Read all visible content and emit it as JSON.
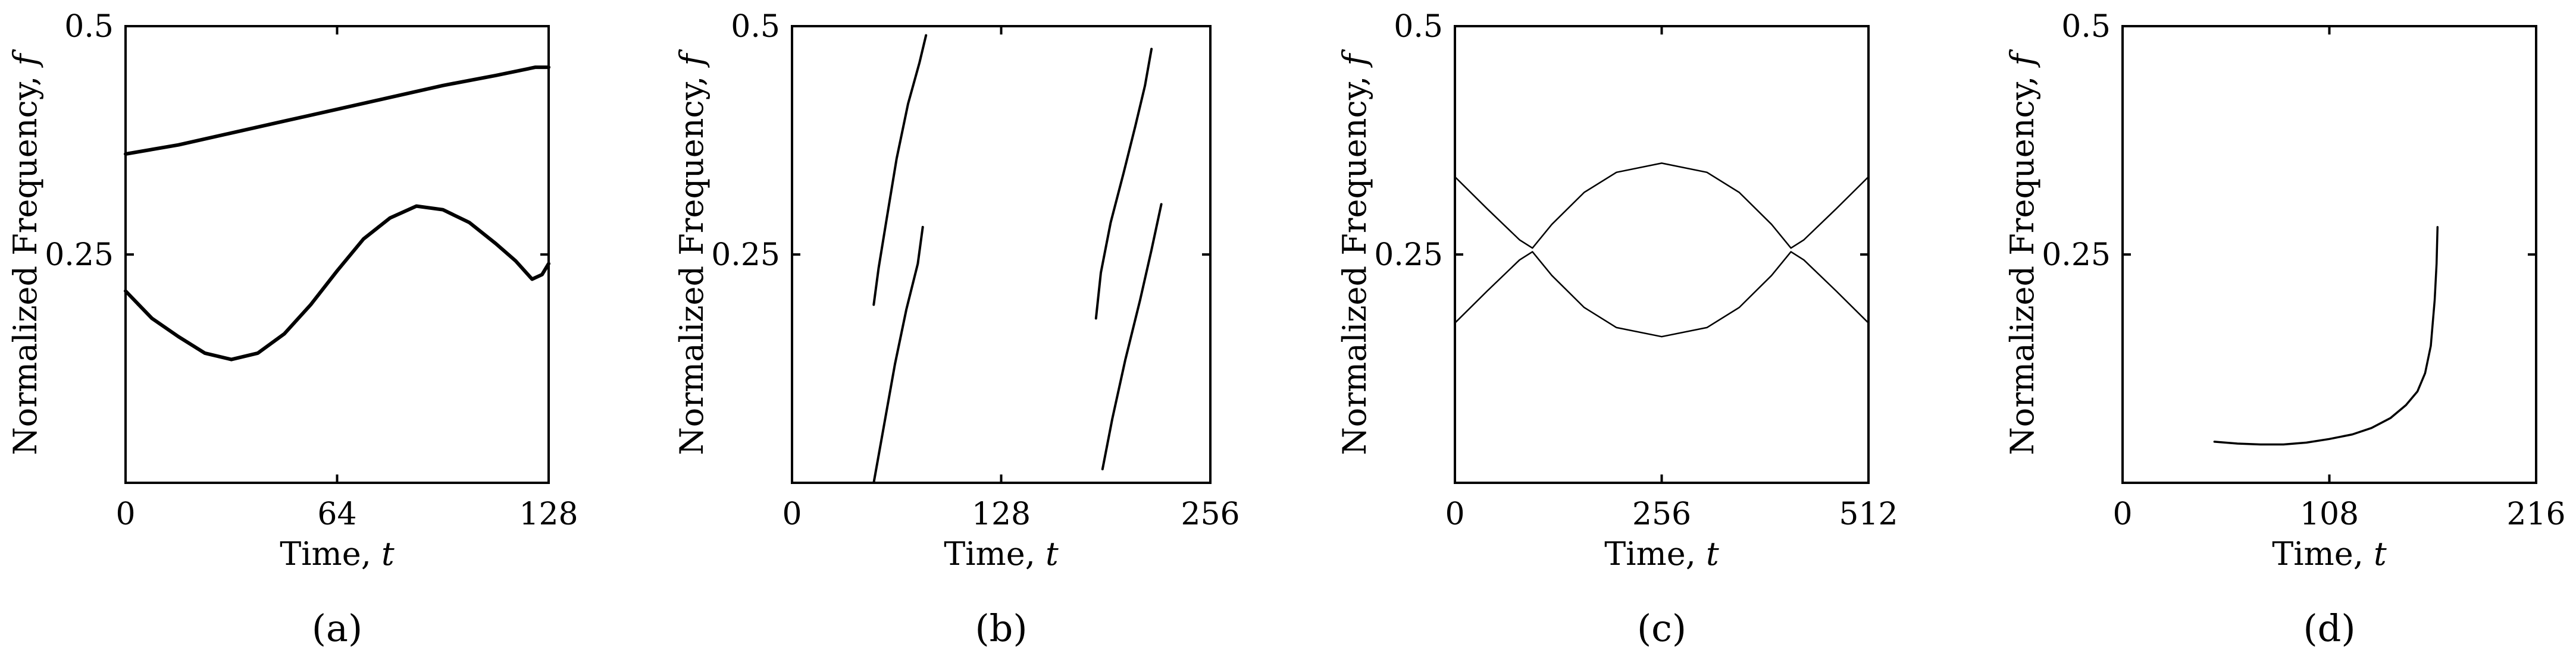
{
  "chart_data": [
    {
      "type": "line",
      "panel_label": "(a)",
      "xlabel": "Time, t",
      "ylabel": "Normalized Frequency, f",
      "xlim": [
        0,
        128
      ],
      "ylim": [
        0,
        0.5
      ],
      "x_ticks": [
        "0",
        "64",
        "128"
      ],
      "y_ticks": [
        "0.25",
        "0.5"
      ],
      "series": [
        {
          "points": [
            [
              0,
              0.36
            ],
            [
              16,
              0.37
            ],
            [
              32,
              0.383
            ],
            [
              48,
              0.396
            ],
            [
              64,
              0.409
            ],
            [
              80,
              0.422
            ],
            [
              96,
              0.435
            ],
            [
              112,
              0.446
            ],
            [
              124,
              0.455
            ],
            [
              128,
              0.455
            ]
          ]
        },
        {
          "points": [
            [
              0,
              0.21
            ],
            [
              4,
              0.195
            ],
            [
              8,
              0.18
            ],
            [
              16,
              0.16
            ],
            [
              24,
              0.142
            ],
            [
              32,
              0.135
            ],
            [
              40,
              0.142
            ],
            [
              48,
              0.163
            ],
            [
              56,
              0.195
            ],
            [
              64,
              0.232
            ],
            [
              72,
              0.267
            ],
            [
              80,
              0.29
            ],
            [
              88,
              0.303
            ],
            [
              96,
              0.299
            ],
            [
              104,
              0.285
            ],
            [
              112,
              0.262
            ],
            [
              118,
              0.243
            ],
            [
              123,
              0.223
            ],
            [
              126,
              0.228
            ],
            [
              128,
              0.24
            ]
          ]
        }
      ],
      "grid": false
    },
    {
      "type": "line",
      "panel_label": "(b)",
      "xlabel": "Time, t",
      "ylabel": "Normalized Frequency, f",
      "xlim": [
        0,
        256
      ],
      "ylim": [
        0,
        0.5
      ],
      "x_ticks": [
        "0",
        "128",
        "256"
      ],
      "y_ticks": [
        "0.25",
        "0.5"
      ],
      "series": [
        {
          "points": [
            [
              50,
              0.195
            ],
            [
              53,
              0.235
            ],
            [
              58,
              0.29
            ],
            [
              64,
              0.355
            ],
            [
              71,
              0.415
            ],
            [
              78,
              0.46
            ],
            [
              82,
              0.49
            ]
          ]
        },
        {
          "points": [
            [
              50,
              0.0
            ],
            [
              56,
              0.06
            ],
            [
              63,
              0.13
            ],
            [
              70,
              0.19
            ],
            [
              77,
              0.24
            ],
            [
              80,
              0.28
            ]
          ]
        },
        {
          "points": [
            [
              186,
              0.18
            ],
            [
              189,
              0.23
            ],
            [
              195,
              0.285
            ],
            [
              203,
              0.34
            ],
            [
              210,
              0.39
            ],
            [
              216,
              0.435
            ],
            [
              220,
              0.475
            ]
          ]
        },
        {
          "points": [
            [
              190,
              0.015
            ],
            [
              196,
              0.07
            ],
            [
              204,
              0.135
            ],
            [
              213,
              0.2
            ],
            [
              220,
              0.255
            ],
            [
              226,
              0.305
            ]
          ]
        }
      ],
      "grid": false
    },
    {
      "type": "line",
      "panel_label": "(c)",
      "xlabel": "Time, t",
      "ylabel": "Normalized Frequency, f",
      "xlim": [
        0,
        512
      ],
      "ylim": [
        0,
        0.5
      ],
      "x_ticks": [
        "0",
        "256",
        "512"
      ],
      "y_ticks": [
        "0.25",
        "0.5"
      ],
      "series": [
        {
          "points": [
            [
              0,
              0.335
            ],
            [
              40,
              0.3
            ],
            [
              80,
              0.266
            ],
            [
              96,
              0.257
            ],
            [
              120,
              0.283
            ],
            [
              160,
              0.318
            ],
            [
              200,
              0.34
            ],
            [
              256,
              0.35
            ],
            [
              312,
              0.34
            ],
            [
              352,
              0.318
            ],
            [
              392,
              0.283
            ],
            [
              416,
              0.257
            ],
            [
              432,
              0.266
            ],
            [
              472,
              0.3
            ],
            [
              512,
              0.335
            ]
          ]
        },
        {
          "points": [
            [
              0,
              0.175
            ],
            [
              40,
              0.21
            ],
            [
              80,
              0.244
            ],
            [
              96,
              0.253
            ],
            [
              120,
              0.227
            ],
            [
              160,
              0.192
            ],
            [
              200,
              0.17
            ],
            [
              256,
              0.16
            ],
            [
              312,
              0.17
            ],
            [
              352,
              0.192
            ],
            [
              392,
              0.227
            ],
            [
              416,
              0.253
            ],
            [
              432,
              0.244
            ],
            [
              472,
              0.21
            ],
            [
              512,
              0.175
            ]
          ]
        }
      ],
      "grid": false
    },
    {
      "type": "line",
      "panel_label": "(d)",
      "xlabel": "Time, t",
      "ylabel": "Normalized Frequency, f",
      "xlim": [
        0,
        216
      ],
      "ylim": [
        0,
        0.5
      ],
      "x_ticks": [
        "0",
        "108",
        "216"
      ],
      "y_ticks": [
        "0.25",
        "0.5"
      ],
      "series": [
        {
          "points": [
            [
              48,
              0.045
            ],
            [
              60,
              0.043
            ],
            [
              72,
              0.042
            ],
            [
              84,
              0.042
            ],
            [
              96,
              0.044
            ],
            [
              108,
              0.048
            ],
            [
              120,
              0.053
            ],
            [
              130,
              0.06
            ],
            [
              140,
              0.071
            ],
            [
              148,
              0.085
            ],
            [
              154,
              0.1
            ],
            [
              158,
              0.12
            ],
            [
              161,
              0.15
            ],
            [
              163,
              0.2
            ],
            [
              164,
              0.24
            ],
            [
              164.5,
              0.28
            ]
          ]
        }
      ],
      "grid": false
    }
  ]
}
